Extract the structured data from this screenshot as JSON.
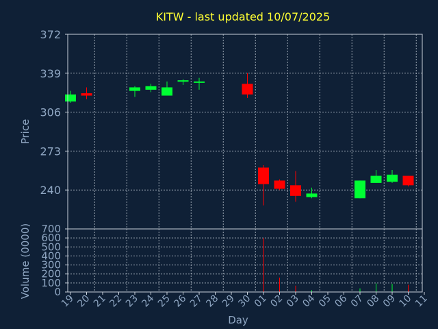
{
  "title": "KITW - last updated 10/07/2025",
  "colors": {
    "background": "#0f2036",
    "up": "#00ff33",
    "down": "#ff0000",
    "title": "#ffff33",
    "axis_text": "#8fa6c2",
    "grid": "#c8d0da"
  },
  "chart_data": [
    {
      "type": "candlestick",
      "ylabel": "Price",
      "ylim": [
        207,
        372
      ],
      "yticks": [
        240,
        273,
        306,
        339,
        372
      ],
      "grid": true,
      "x": [
        "19",
        "20",
        "21",
        "22",
        "23",
        "24",
        "25",
        "26",
        "27",
        "28",
        "29",
        "30",
        "01",
        "02",
        "03",
        "04",
        "05",
        "06",
        "07",
        "08",
        "09",
        "10",
        "11"
      ],
      "candles": [
        {
          "x": "19",
          "open": 315,
          "high": 324,
          "low": 314,
          "close": 321
        },
        {
          "x": "20",
          "open": 322,
          "high": 327,
          "low": 317,
          "close": 320
        },
        {
          "x": "23",
          "open": 324,
          "high": 328,
          "low": 319,
          "close": 327
        },
        {
          "x": "24",
          "open": 325,
          "high": 330,
          "low": 323,
          "close": 328
        },
        {
          "x": "25",
          "open": 320,
          "high": 332,
          "low": 320,
          "close": 327
        },
        {
          "x": "26",
          "open": 332,
          "high": 334,
          "low": 329,
          "close": 333
        },
        {
          "x": "27",
          "open": 332,
          "high": 335,
          "low": 325,
          "close": 332
        },
        {
          "x": "30",
          "open": 330,
          "high": 339,
          "low": 318,
          "close": 321
        },
        {
          "x": "01",
          "open": 259,
          "high": 261,
          "low": 227,
          "close": 245
        },
        {
          "x": "02",
          "open": 248,
          "high": 249,
          "low": 240,
          "close": 241
        },
        {
          "x": "03",
          "open": 244,
          "high": 256,
          "low": 230,
          "close": 235
        },
        {
          "x": "04",
          "open": 234,
          "high": 242,
          "low": 233,
          "close": 237
        },
        {
          "x": "07",
          "open": 233,
          "high": 248,
          "low": 233,
          "close": 248
        },
        {
          "x": "08",
          "open": 246,
          "high": 257,
          "low": 246,
          "close": 252
        },
        {
          "x": "09",
          "open": 247,
          "high": 257,
          "low": 246,
          "close": 253
        },
        {
          "x": "10",
          "open": 252,
          "high": 252,
          "low": 243,
          "close": 244
        }
      ]
    },
    {
      "type": "bar",
      "ylabel": "Volume (0000)",
      "xlabel": "Day",
      "ylim": [
        0,
        700
      ],
      "yticks": [
        0,
        100,
        200,
        300,
        400,
        500,
        600,
        700
      ],
      "grid": true,
      "bars": [
        {
          "x": "26",
          "value": 5,
          "direction": "up"
        },
        {
          "x": "01",
          "value": 600,
          "direction": "down"
        },
        {
          "x": "02",
          "value": 160,
          "direction": "down"
        },
        {
          "x": "03",
          "value": 70,
          "direction": "down"
        },
        {
          "x": "04",
          "value": 20,
          "direction": "up"
        },
        {
          "x": "07",
          "value": 40,
          "direction": "up"
        },
        {
          "x": "08",
          "value": 95,
          "direction": "up"
        },
        {
          "x": "09",
          "value": 90,
          "direction": "up"
        },
        {
          "x": "10",
          "value": 80,
          "direction": "down"
        }
      ]
    }
  ]
}
